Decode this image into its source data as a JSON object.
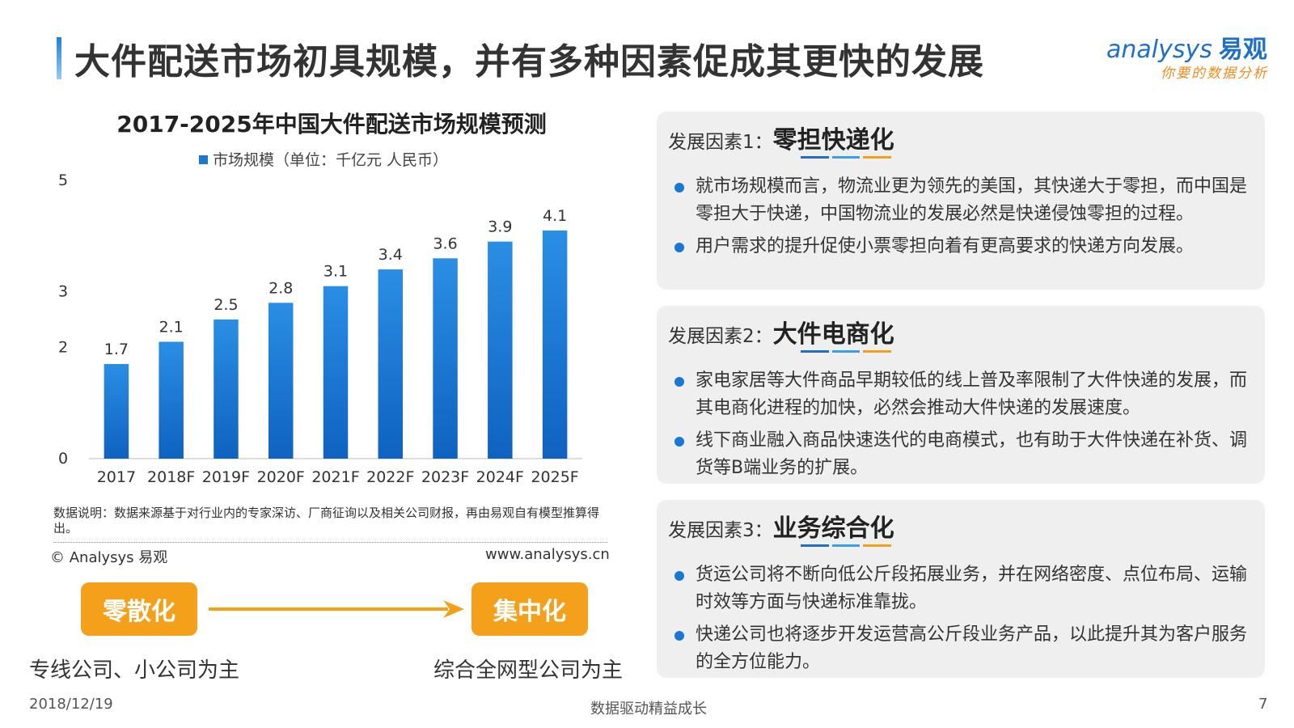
{
  "header": {
    "title": "大件配送市场初具规模，并有多种因素促成其更快的发展",
    "logo_text": "nalysys",
    "logo_cn": "易观",
    "logo_sub": "你要的数据分析"
  },
  "chart_data": {
    "type": "bar",
    "title": "2017-2025年中国大件配送市场规模预测",
    "legend": [
      {
        "name": "市场规模（单位：千亿元 人民币）",
        "color": "#1a78d0"
      }
    ],
    "categories": [
      "2017",
      "2018F",
      "2019F",
      "2020F",
      "2021F",
      "2022F",
      "2023F",
      "2024F",
      "2025F"
    ],
    "series": [
      {
        "name": "市场规模（单位：千亿元 人民币）",
        "values": [
          1.7,
          2.1,
          2.5,
          2.8,
          3.1,
          3.4,
          3.6,
          3.9,
          4.1
        ]
      }
    ],
    "data_labels": [
      "1.7",
      "2.1",
      "2.5",
      "2.8",
      "3.1",
      "3.4",
      "3.6",
      "3.9",
      "4.1"
    ],
    "y_ticks": [
      0,
      2,
      3,
      5
    ],
    "y_tick_labels": [
      "0",
      "2",
      "3",
      "5"
    ],
    "ylim": [
      0,
      5
    ],
    "grid": false,
    "legend_position": "top-center"
  },
  "note": {
    "text": "数据说明：数据来源基于对行业内的专家深访、厂商征询以及相关公司财报，再由易观自有模型推算得出。",
    "copyright": "© Analysys 易观",
    "website": "www.analysys.cn"
  },
  "flow": {
    "from_label": "零散化",
    "to_label": "集中化",
    "from_caption": "专线公司、小公司为主",
    "to_caption": "综合全网型公司为主",
    "accent": "#f5a01a"
  },
  "panels": [
    {
      "prefix": "发展因素1：",
      "title": "零担快递化",
      "bullets": [
        "就市场规模而言，物流业更为领先的美国，其快递大于零担，而中国是零担大于快递，中国物流业的发展必然是快递侵蚀零担的过程。",
        "用户需求的提升促使小票零担向着有更高要求的快递方向发展。"
      ]
    },
    {
      "prefix": "发展因素2：",
      "title": "大件电商化",
      "bullets": [
        "家电家居等大件商品早期较低的线上普及率限制了大件快递的发展，而其电商化进程的加快，必然会推动大件快递的发展速度。",
        "线下商业融入商品快速迭代的电商模式，也有助于大件快递在补货、调货等B端业务的扩展。"
      ]
    },
    {
      "prefix": "发展因素3：",
      "title": "业务综合化",
      "bullets": [
        "货运公司将不断向低公斤段拓展业务，并在网络密度、点位布局、运输时效等方面与快递标准靠拢。",
        "快递公司也将逐步开发运营高公斤段业务产品，以此提升其为客户服务的全方位能力。"
      ]
    }
  ],
  "underline_colors": [
    "#1e6fc8",
    "#3aa0e8",
    "#f5a01a"
  ],
  "footer": {
    "date": "2018/12/19",
    "slogan": "数据驱动精益成长",
    "page": "7"
  }
}
